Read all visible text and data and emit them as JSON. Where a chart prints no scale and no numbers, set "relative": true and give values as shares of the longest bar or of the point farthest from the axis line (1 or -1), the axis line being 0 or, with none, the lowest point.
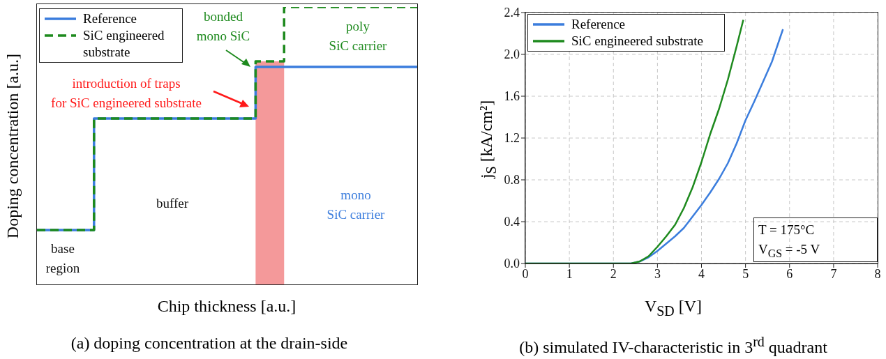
{
  "chart_data": [
    {
      "type": "step",
      "title": "(a) doping concentration at the drain-side",
      "xlabel": "Chip thickness [a.u.]",
      "ylabel": "Doping concentration [a.u.]",
      "relative": true,
      "legend": "top left",
      "categories": [
        null,
        null,
        null,
        null,
        null,
        null,
        null,
        null,
        null,
        null,
        null,
        null,
        null,
        null,
        null,
        null,
        null,
        null,
        null,
        null,
        null,
        null,
        null,
        null,
        null,
        null,
        null,
        null,
        null,
        null,
        null,
        null,
        null,
        null,
        null,
        null,
        null,
        null,
        null,
        null,
        null
      ],
      "series": [
        {
          "type": "area",
          "color": "#f4999a",
          "values": [
            null,
            null,
            null,
            null,
            null,
            null,
            null,
            null,
            null,
            null,
            null,
            null,
            null,
            null,
            null,
            null,
            null,
            null,
            null,
            null,
            null,
            null,
            null,
            0.804,
            0.804,
            0.804,
            0.804,
            null,
            null,
            null,
            null,
            null,
            null,
            null,
            null,
            null,
            null,
            null,
            null,
            null,
            null
          ]
        },
        {
          "name": "Reference",
          "color": "#3b7ddd",
          "line_style": "solid",
          "values": [
            0.196,
            0.196,
            0.196,
            0.196,
            0.196,
            0.196,
            0.598,
            0.598,
            0.598,
            0.598,
            0.598,
            0.598,
            0.598,
            0.598,
            0.598,
            0.598,
            0.598,
            0.598,
            0.598,
            0.598,
            0.598,
            0.598,
            0.598,
            0.784,
            0.784,
            0.784,
            0.784,
            0.784,
            0.784,
            0.784,
            0.784,
            0.784,
            0.784,
            0.784,
            0.784,
            0.784,
            0.784,
            0.784,
            0.784,
            0.784,
            0.784
          ]
        },
        {
          "name": "SiC engineered substrate",
          "color": "#1e8a1e",
          "line_style": "dashed",
          "values": [
            0.196,
            0.196,
            0.196,
            0.196,
            0.196,
            0.196,
            0.598,
            0.598,
            0.598,
            0.598,
            0.598,
            0.598,
            0.598,
            0.598,
            0.598,
            0.598,
            0.598,
            0.598,
            0.598,
            0.598,
            0.598,
            0.598,
            0.598,
            0.804,
            0.804,
            0.804,
            1,
            1,
            1,
            1,
            1,
            1,
            1,
            1,
            1,
            1,
            1,
            1,
            1,
            1,
            1
          ]
        }
      ],
      "annotations": [
        "bonded\nmono SiC",
        "poly\nSiC carrier",
        "introduction of traps\nfor SiC engineered substrate",
        "buffer",
        "base\nregion",
        "mono\nSiC carrier"
      ]
    },
    {
      "type": "line",
      "title": "(b) simulated IV-characteristic in 3$^{rd}$ quadrant",
      "xlabel": "V$_{SD}$ [V]",
      "ylabel": "j$_{S}$ [kA/cm²]",
      "legend": "top left",
      "grid": true,
      "xlim": [
        0,
        8
      ],
      "xticks": [
        0,
        1,
        2,
        3,
        4,
        5,
        6,
        7,
        8
      ],
      "ylim": [
        0,
        2.4
      ],
      "yticks": [
        {
          "value": 0,
          "label": "0.0"
        },
        0.4,
        0.8,
        1.2,
        1.6,
        {
          "value": 2,
          "label": "2.0"
        },
        2.4
      ],
      "series": [
        {
          "name": "Reference",
          "color": "#3b7ddd",
          "x": [
            0,
            2.4,
            2.6,
            2.8,
            3.0,
            3.2,
            3.4,
            3.6,
            3.8,
            4.0,
            4.2,
            4.4,
            4.6,
            4.8,
            5.0,
            5.2,
            5.4,
            5.6,
            5.85
          ],
          "values": [
            0,
            0,
            0.02,
            0.06,
            0.12,
            0.19,
            0.26,
            0.34,
            0.45,
            0.56,
            0.68,
            0.81,
            0.96,
            1.15,
            1.37,
            1.55,
            1.74,
            1.93,
            2.24
          ]
        },
        {
          "name": "SiC engineered substrate",
          "color": "#1e8a1e",
          "x": [
            0,
            2.4,
            2.6,
            2.8,
            3.0,
            3.2,
            3.4,
            3.6,
            3.8,
            4.0,
            4.2,
            4.4,
            4.6,
            4.8,
            4.95
          ],
          "values": [
            0,
            0,
            0.02,
            0.07,
            0.16,
            0.26,
            0.37,
            0.53,
            0.73,
            0.97,
            1.24,
            1.48,
            1.76,
            2.08,
            2.33
          ]
        }
      ],
      "annotations": [
        "T = 175°C",
        "V$_{GS}$ = -5 V"
      ]
    }
  ]
}
